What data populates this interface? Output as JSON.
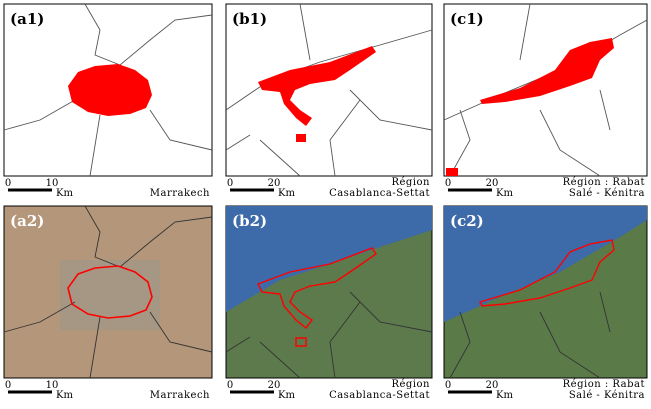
{
  "panels": [
    {
      "label": "(a1)",
      "scale": {
        "start": "0",
        "end": "10",
        "unit": "Km"
      },
      "place": [
        "Marrakech"
      ]
    },
    {
      "label": "(b1)",
      "scale": {
        "start": "0",
        "end": "20",
        "unit": "Km"
      },
      "place": [
        "Région",
        "Casablanca-Settat"
      ]
    },
    {
      "label": "(c1)",
      "scale": {
        "start": "0",
        "end": "20",
        "unit": "Km"
      },
      "place": [
        "Région : Rabat",
        "Salé - Kénitra"
      ]
    },
    {
      "label": "(a2)",
      "scale": {
        "start": "0",
        "end": "10",
        "unit": "Km"
      },
      "place": [
        "Marrakech"
      ]
    },
    {
      "label": "(b2)",
      "scale": {
        "start": "0",
        "end": "20",
        "unit": "Km"
      },
      "place": [
        "Région",
        "Casablanca-Settat"
      ]
    },
    {
      "label": "(c2)",
      "scale": {
        "start": "0",
        "end": "20",
        "unit": "Km"
      },
      "place": [
        "Région : Rabat",
        "Salé - Kénitra"
      ]
    }
  ]
}
